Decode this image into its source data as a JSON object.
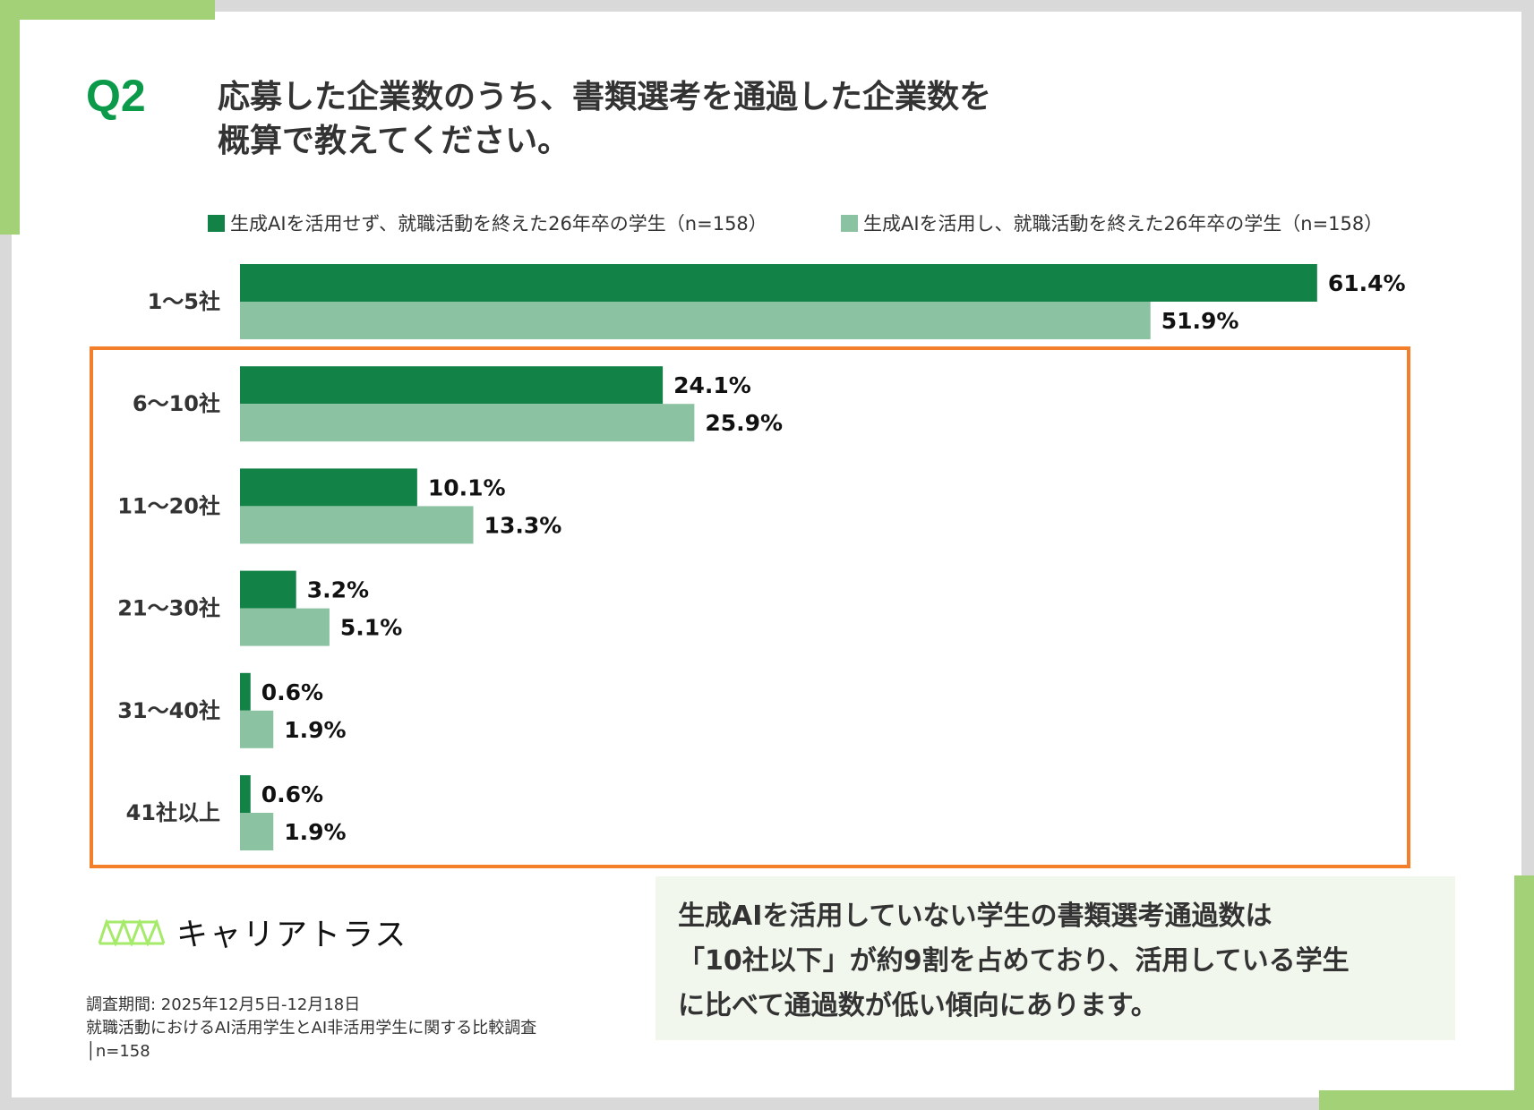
{
  "question": {
    "number": "Q2",
    "title_lines": [
      "応募した企業数のうち、書類選考を通過した企業数を",
      "概算で教えてください。"
    ]
  },
  "colors": {
    "series_dark": "#128246",
    "series_light": "#8bc3a2",
    "accent_green": "#a3d177",
    "highlight_box": "#f47f2a",
    "q_color": "#0a9a4a"
  },
  "chart_data": {
    "type": "bar",
    "orientation": "horizontal",
    "categories": [
      "1〜5社",
      "6〜10社",
      "11〜20社",
      "21〜30社",
      "31〜40社",
      "41社以上"
    ],
    "series": [
      {
        "name": "生成AIを活用せず、就職活動を終えた26年卒の学生（n=158）",
        "values": [
          61.4,
          24.1,
          10.1,
          3.2,
          0.6,
          0.6
        ],
        "labels": [
          "61.4%",
          "24.1%",
          "10.1%",
          "3.2%",
          "0.6%",
          "0.6%"
        ],
        "color": "#128246"
      },
      {
        "name": "生成AIを活用し、就職活動を終えた26年卒の学生（n=158）",
        "values": [
          51.9,
          25.9,
          13.3,
          5.1,
          1.9,
          1.9
        ],
        "labels": [
          "51.9%",
          "25.9%",
          "13.3%",
          "5.1%",
          "1.9%",
          "1.9%"
        ],
        "color": "#8bc3a2"
      }
    ],
    "unit": "%",
    "legend": "top",
    "grid": false,
    "highlighted_categories": [
      "6〜10社",
      "11〜20社",
      "21〜30社",
      "31〜40社",
      "41社以上"
    ]
  },
  "logo": {
    "text": "キャリアトラス",
    "icon": "truss-icon"
  },
  "footer": {
    "lines": [
      "調査期間: 2025年12月5日-12月18日",
      "就職活動におけるAI活用学生とAI非活用学生に関する比較調査",
      "│n=158"
    ]
  },
  "summary": {
    "lines": [
      "生成AIを活用していない学生の書類選考通過数は",
      "「10社以下」が約9割を占めており、活用している学生",
      "に比べて通過数が低い傾向にあります。"
    ]
  }
}
